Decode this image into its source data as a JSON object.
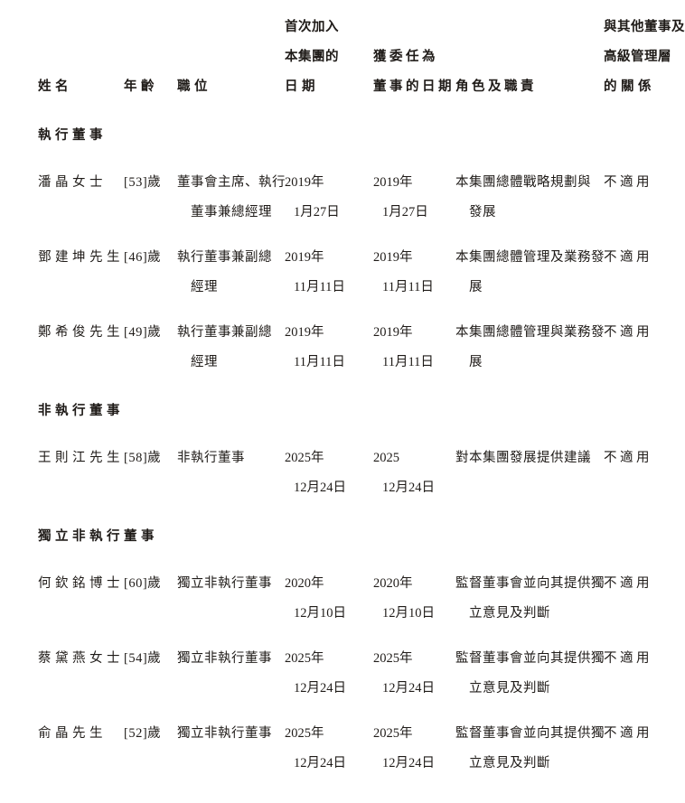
{
  "document": {
    "columns": {
      "name": [
        "姓名"
      ],
      "age": [
        "年齡"
      ],
      "position": [
        "職位"
      ],
      "join_date": [
        "首次加入",
        "本集團的",
        "日期"
      ],
      "appoint_date": [
        "獲委任為",
        "董事的日期"
      ],
      "role": [
        "角色及職責"
      ],
      "relationship": [
        "與其他董事及",
        "高級管理層",
        "的關係"
      ]
    },
    "sections": [
      {
        "title": "執行董事",
        "rows": [
          {
            "name": "潘晶女士",
            "age": "[53]歲",
            "position": [
              "董事會主席、執行",
              "董事兼總經理"
            ],
            "join_date": [
              "2019年",
              "1月27日"
            ],
            "appoint_date": [
              "2019年",
              "1月27日"
            ],
            "role": [
              "本集團總體戰略規劃與",
              "發展"
            ],
            "relationship": "不適用"
          },
          {
            "name": "鄧建坤先生",
            "age": "[46]歲",
            "position": [
              "執行董事兼副總",
              "經理"
            ],
            "join_date": [
              "2019年",
              "11月11日"
            ],
            "appoint_date": [
              "2019年",
              "11月11日"
            ],
            "role": [
              "本集團總體管理及業務發",
              "展"
            ],
            "relationship": "不適用"
          },
          {
            "name": "鄭希俊先生",
            "age": "[49]歲",
            "position": [
              "執行董事兼副總",
              "經理"
            ],
            "join_date": [
              "2019年",
              "11月11日"
            ],
            "appoint_date": [
              "2019年",
              "11月11日"
            ],
            "role": [
              "本集團總體管理與業務發",
              "展"
            ],
            "relationship": "不適用"
          }
        ]
      },
      {
        "title": "非執行董事",
        "rows": [
          {
            "name": "王則江先生",
            "age": "[58]歲",
            "position": [
              "非執行董事"
            ],
            "join_date": [
              "2025年",
              "12月24日"
            ],
            "appoint_date": [
              "2025",
              "12月24日"
            ],
            "role": [
              "對本集團發展提供建議"
            ],
            "relationship": "不適用"
          }
        ]
      },
      {
        "title": "獨立非執行董事",
        "rows": [
          {
            "name": "何欽銘博士",
            "age": "[60]歲",
            "position": [
              "獨立非執行董事"
            ],
            "join_date": [
              "2020年",
              "12月10日"
            ],
            "appoint_date": [
              "2020年",
              "12月10日"
            ],
            "role": [
              "監督董事會並向其提供獨",
              "立意見及判斷"
            ],
            "relationship": "不適用"
          },
          {
            "name": "蔡黛燕女士",
            "age": "[54]歲",
            "position": [
              "獨立非執行董事"
            ],
            "join_date": [
              "2025年",
              "12月24日"
            ],
            "appoint_date": [
              "2025年",
              "12月24日"
            ],
            "role": [
              "監督董事會並向其提供獨",
              "立意見及判斷"
            ],
            "relationship": "不適用"
          },
          {
            "name": "俞晶先生",
            "age": "[52]歲",
            "position": [
              "獨立非執行董事"
            ],
            "join_date": [
              "2025年",
              "12月24日"
            ],
            "appoint_date": [
              "2025年",
              "12月24日"
            ],
            "role": [
              "監督董事會並向其提供獨",
              "立意見及判斷"
            ],
            "relationship": "不適用"
          }
        ]
      }
    ],
    "colors": {
      "text": "#1f1b18",
      "background": "#ffffff"
    }
  }
}
